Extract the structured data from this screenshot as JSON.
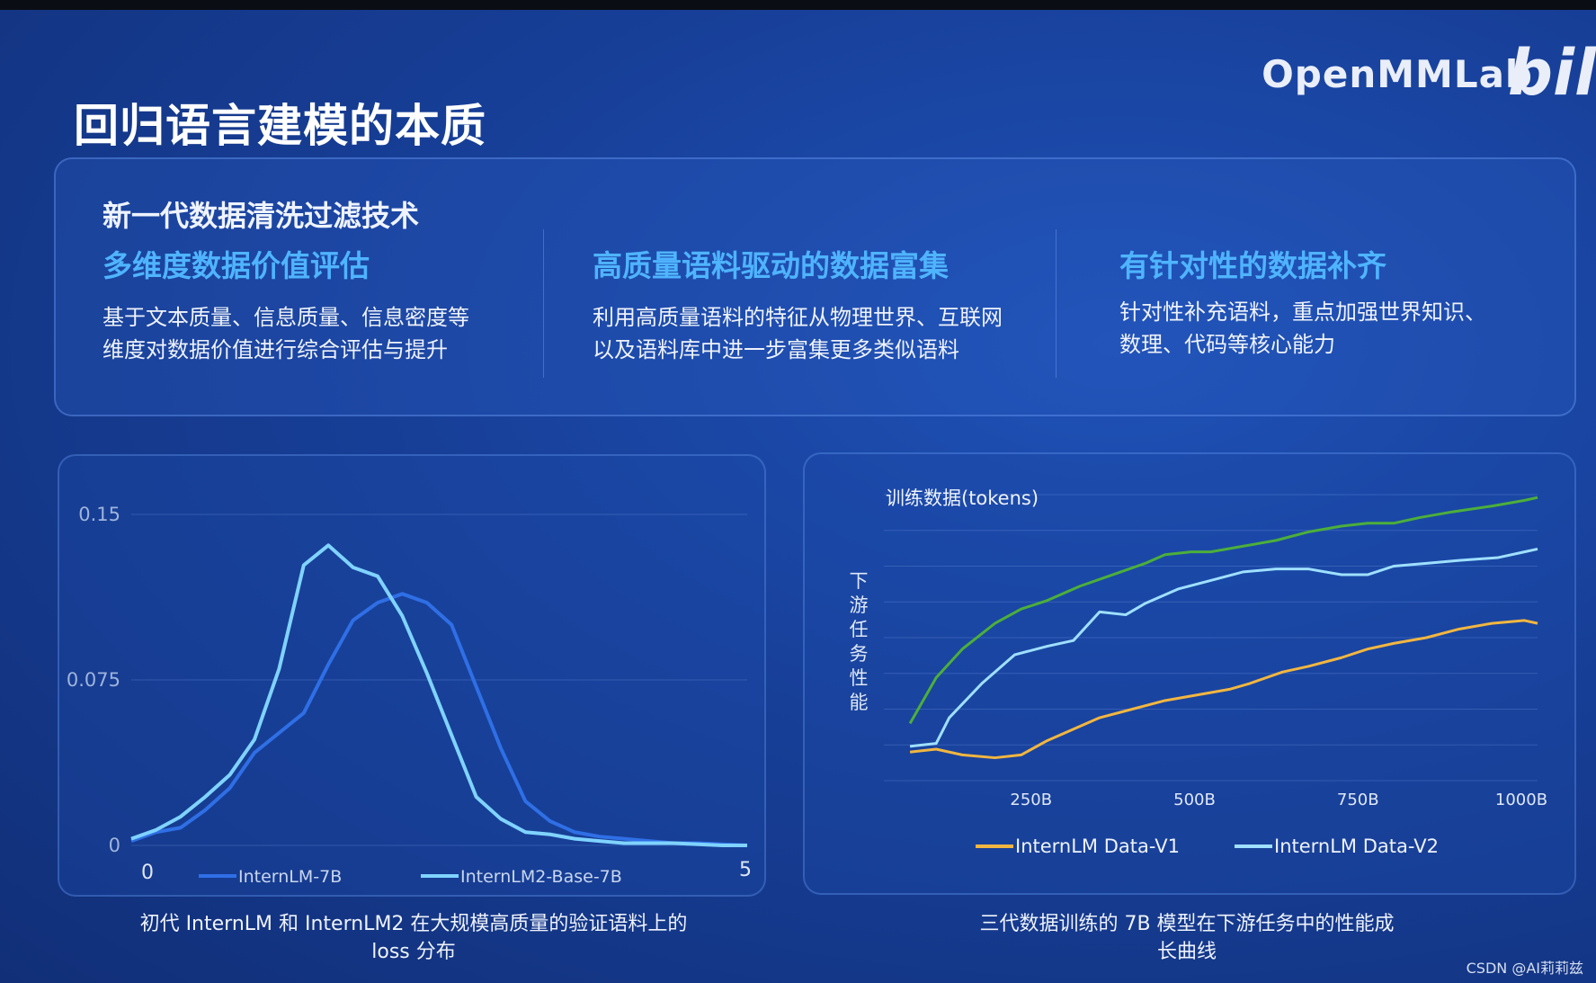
{
  "brand": "OpenMMLab",
  "bili_logo": "bil",
  "title": "回归语言建模的本质",
  "panel": {
    "title": "新一代数据清洗过滤技术",
    "columns": [
      {
        "heading": "多维度数据价值评估",
        "line1": "基于文本质量、信息质量、信息密度等",
        "line2": "维度对数据价值进行综合评估与提升"
      },
      {
        "heading": "高质量语料驱动的数据富集",
        "line1": "利用高质量语料的特征从物理世界、互联网",
        "line2": "以及语料库中进一步富集更多类似语料"
      },
      {
        "heading": "有针对性的数据补齐",
        "line1": "针对性补充语料，重点加强世界知识、",
        "line2": "数理、代码等核心能力"
      }
    ]
  },
  "chart_data": [
    {
      "type": "line",
      "title": "",
      "xlabel": "",
      "ylabel": "",
      "xlim": [
        0,
        5
      ],
      "ylim": [
        0,
        0.15
      ],
      "x_ticks": [
        "0",
        "5"
      ],
      "y_ticks": [
        "0.15",
        "0.075",
        "0"
      ],
      "grid": true,
      "legend_placement": "bottom",
      "series": [
        {
          "name": "InternLM-7B",
          "color": "#2f6fe6",
          "x": [
            0,
            0.2,
            0.4,
            0.6,
            0.8,
            1.0,
            1.2,
            1.4,
            1.6,
            1.8,
            2.0,
            2.2,
            2.4,
            2.6,
            2.8,
            3.0,
            3.2,
            3.4,
            3.6,
            3.8,
            4.0,
            4.2,
            4.4,
            4.6,
            4.8,
            5.0
          ],
          "y": [
            0.002,
            0.006,
            0.008,
            0.016,
            0.026,
            0.042,
            0.051,
            0.06,
            0.082,
            0.102,
            0.11,
            0.114,
            0.11,
            0.1,
            0.072,
            0.044,
            0.02,
            0.011,
            0.006,
            0.004,
            0.003,
            0.002,
            0.001,
            0.001,
            0.0005,
            0.0
          ]
        },
        {
          "name": "InternLM2-Base-7B",
          "color": "#7fd3ff",
          "x": [
            0,
            0.2,
            0.4,
            0.6,
            0.8,
            1.0,
            1.2,
            1.4,
            1.6,
            1.8,
            2.0,
            2.2,
            2.4,
            2.6,
            2.8,
            3.0,
            3.2,
            3.4,
            3.6,
            3.8,
            4.0,
            4.2,
            4.4,
            4.6,
            4.8,
            5.0
          ],
          "y": [
            0.003,
            0.007,
            0.013,
            0.022,
            0.032,
            0.048,
            0.08,
            0.127,
            0.136,
            0.126,
            0.122,
            0.104,
            0.078,
            0.05,
            0.022,
            0.012,
            0.006,
            0.005,
            0.003,
            0.002,
            0.001,
            0.001,
            0.001,
            0.0005,
            0.0,
            0.0
          ]
        }
      ]
    },
    {
      "type": "line",
      "title": "训练数据(tokens)",
      "ylabel": "下游任务性能",
      "xlabel": "",
      "xlim": [
        0,
        1000
      ],
      "ylim": [
        0,
        100
      ],
      "x_ticks": [
        "250B",
        "500B",
        "750B",
        "1000B"
      ],
      "x_tick_values": [
        250,
        500,
        750,
        1000
      ],
      "grid": true,
      "legend_placement": "bottom",
      "series": [
        {
          "name": "",
          "color": "#4caf3a",
          "x": [
            40,
            80,
            120,
            170,
            210,
            250,
            300,
            350,
            400,
            430,
            470,
            500,
            550,
            600,
            650,
            700,
            740,
            780,
            820,
            870,
            930,
            980,
            1000
          ],
          "y": [
            20,
            36,
            46,
            55,
            60,
            63,
            68,
            72,
            76,
            79,
            80,
            80,
            82,
            84,
            87,
            89,
            90,
            90,
            92,
            94,
            96,
            98,
            99
          ]
        },
        {
          "name": "InternLM Data-V2",
          "color": "#9fe0ff",
          "x": [
            40,
            80,
            100,
            150,
            200,
            250,
            290,
            330,
            370,
            400,
            450,
            500,
            550,
            600,
            650,
            700,
            740,
            780,
            830,
            880,
            940,
            980,
            1000
          ],
          "y": [
            12,
            13,
            22,
            34,
            44,
            47,
            49,
            59,
            58,
            62,
            67,
            70,
            73,
            74,
            74,
            72,
            72,
            75,
            76,
            77,
            78,
            80,
            81
          ]
        },
        {
          "name": "InternLM Data-V1",
          "color": "#f2b640",
          "x": [
            40,
            80,
            120,
            170,
            210,
            250,
            290,
            330,
            380,
            430,
            480,
            530,
            560,
            610,
            650,
            700,
            740,
            780,
            830,
            880,
            930,
            980,
            1000
          ],
          "y": [
            10,
            11,
            9,
            8,
            9,
            14,
            18,
            22,
            25,
            28,
            30,
            32,
            34,
            38,
            40,
            43,
            46,
            48,
            50,
            53,
            55,
            56,
            55
          ]
        }
      ]
    }
  ],
  "captions": {
    "left_line1": "初代 InternLM 和 InternLM2 在大规模高质量的验证语料上的",
    "left_line2": "loss 分布",
    "right_line1": "三代数据训练的 7B 模型在下游任务中的性能成",
    "right_line2": "长曲线"
  },
  "watermark": "CSDN @AI莉莉兹"
}
